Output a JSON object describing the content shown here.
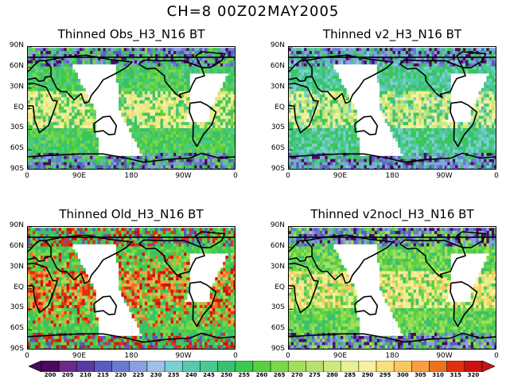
{
  "title": "CH=8    00Z02MAY2005",
  "panels": [
    {
      "title": "Thinned Obs_H3_N16 BT",
      "scheme": "obs"
    },
    {
      "title": "Thinned v2_H3_N16 BT",
      "scheme": "v2"
    },
    {
      "title": "Thinned Old_H3_N16 BT",
      "scheme": "old"
    },
    {
      "title": "Thinned v2nocl_H3_N16 BT",
      "scheme": "nocl"
    }
  ],
  "lat_labels": [
    "90N",
    "60N",
    "30N",
    "EQ",
    "30S",
    "60S",
    "90S"
  ],
  "lon_labels": [
    "0",
    "90E",
    "180",
    "90W",
    "0"
  ],
  "colorbar": {
    "labels": [
      "200",
      "205",
      "210",
      "215",
      "220",
      "225",
      "230",
      "235",
      "240",
      "245",
      "250",
      "255",
      "260",
      "265",
      "270",
      "275",
      "280",
      "285",
      "290",
      "295",
      "300",
      "305",
      "310",
      "315",
      "320"
    ],
    "colors": [
      "#4a0a5a",
      "#6a2a8a",
      "#5a3aa0",
      "#5a5ac0",
      "#6a7ad0",
      "#8aa0e0",
      "#a0c0e8",
      "#7ad0d0",
      "#5ac8b0",
      "#4ac890",
      "#3ac070",
      "#3ac850",
      "#5ad040",
      "#7ad84a",
      "#a0e05a",
      "#b8e070",
      "#d0e880",
      "#e8f090",
      "#f8f0a0",
      "#f8e080",
      "#f8c860",
      "#f8a040",
      "#f07020",
      "#e03010",
      "#d01010"
    ]
  }
}
